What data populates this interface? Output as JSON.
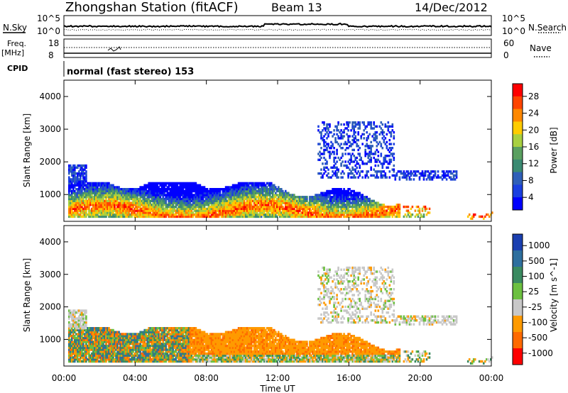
{
  "header": {
    "station": "Zhongshan Station (fitACF)",
    "beam": "Beam 13",
    "date": "14/Dec/2012"
  },
  "panels": {
    "nsky_label": "N.Sky",
    "nsearch_label": "N.Search",
    "nsky_ticks": [
      "10^5",
      "10^0"
    ],
    "nsearch_ticks": [
      "10^5",
      "10^0"
    ],
    "freq_label": "Freq.",
    "freq_unit": "[MHz]",
    "freq_ticks": [
      "18",
      "8"
    ],
    "nave_label": "Nave",
    "nave_ticks": [
      "60",
      "0"
    ],
    "cpid_label": "CPID",
    "cpid_text": "normal (fast stereo) 153"
  },
  "chart_data": [
    {
      "type": "heatmap",
      "panel": "power",
      "ylabel": "Slant Range [km]",
      "xlabel": "",
      "y_ticks": [
        "4000",
        "3000",
        "2000",
        "1000"
      ],
      "ylim": [
        180,
        4500
      ],
      "colorbar": {
        "label": "Power [dB]",
        "ticks": [
          "28",
          "24",
          "20",
          "16",
          "12",
          "8",
          "4"
        ],
        "colors": [
          "#ff0000",
          "#ff4400",
          "#ff8800",
          "#ffcc00",
          "#a8d040",
          "#5aa060",
          "#3a8a72",
          "#2f5fb8",
          "#1a3fe0",
          "#0000ff"
        ]
      }
    },
    {
      "type": "heatmap",
      "panel": "velocity",
      "ylabel": "Slant Range [km]",
      "xlabel": "Time UT",
      "y_ticks": [
        "4000",
        "3000",
        "2000",
        "1000"
      ],
      "x_ticks": [
        "00:00",
        "04:00",
        "08:00",
        "12:00",
        "16:00",
        "20:00",
        "00:00"
      ],
      "xlim_hours": [
        0,
        24
      ],
      "ylim": [
        180,
        4500
      ],
      "colorbar": {
        "label": "Velocity [m s^-1]",
        "ticks": [
          "1000",
          "500",
          "100",
          "25",
          "-25",
          "-100",
          "-500",
          "-1000"
        ],
        "colors": [
          "#1a3fb0",
          "#2e6f9e",
          "#3a8a60",
          "#6cc040",
          "#c8c8c8",
          "#ff9a00",
          "#ff6a00",
          "#ff0000"
        ]
      }
    }
  ]
}
